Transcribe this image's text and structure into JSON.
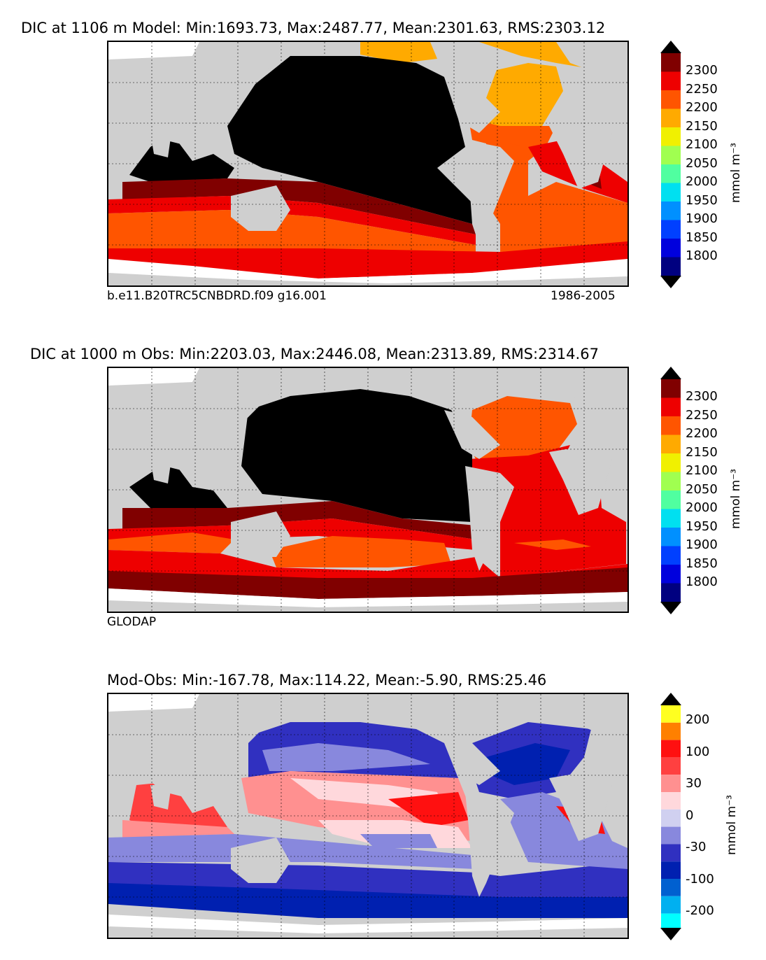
{
  "panels": [
    {
      "id": "model",
      "title": "DIC at 1106 m Model: Min:1693.73, Max:2487.77, Mean:2301.63, RMS:2303.12",
      "caption_left": "b.e11.B20TRC5CNBDRD.f09 g16.001",
      "caption_right": "1986-2005",
      "colorbar_unit": "mmol m⁻³",
      "colorbar_ticks": [
        "2300",
        "2250",
        "2200",
        "2150",
        "2100",
        "2050",
        "2000",
        "1950",
        "1900",
        "1850",
        "1800"
      ]
    },
    {
      "id": "obs",
      "title": "DIC at 1000 m Obs: Min:2203.03, Max:2446.08, Mean:2313.89, RMS:2314.67",
      "caption_left": "GLODAP",
      "caption_right": "",
      "colorbar_unit": "mmol m⁻³",
      "colorbar_ticks": [
        "2300",
        "2250",
        "2200",
        "2150",
        "2100",
        "2050",
        "2000",
        "1950",
        "1900",
        "1850",
        "1800"
      ]
    },
    {
      "id": "diff",
      "title": "Mod-Obs: Min:-167.78, Max:114.22, Mean:-5.90, RMS:25.46",
      "caption_left": "",
      "caption_right": "",
      "colorbar_unit": "mmol m⁻³",
      "colorbar_ticks": [
        "200",
        "100",
        "30",
        "0",
        "-30",
        "-100",
        "-200"
      ]
    }
  ],
  "colors": {
    "land": "#cfcfcf",
    "ice_white": "#ffffff",
    "dic_scale": [
      "#000080",
      "#0000dd",
      "#0040ff",
      "#0090ff",
      "#00e0f0",
      "#50ffa0",
      "#a0ff50",
      "#f0f000",
      "#ffaa00",
      "#ff5500",
      "#ee0000",
      "#800000"
    ],
    "diff_scale": [
      "#00ffff",
      "#00b0f0",
      "#0060d0",
      "#0020b0",
      "#3030c0",
      "#8888dd",
      "#d0d0f0",
      "#ffd8dc",
      "#ff9090",
      "#ff4040",
      "#ff1010",
      "#ff8000",
      "#ffff20"
    ]
  }
}
